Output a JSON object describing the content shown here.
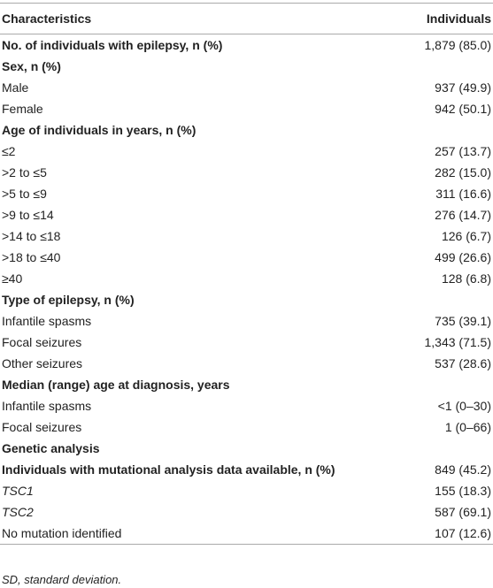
{
  "table": {
    "columns": [
      "Characteristics",
      "Individuals"
    ],
    "rows": [
      {
        "label": "No. of individuals with epilepsy, n (%)",
        "value": "1,879 (85.0)",
        "bold": true
      },
      {
        "label": "Sex, n (%)",
        "bold": true
      },
      {
        "label": "Male",
        "value": "937 (49.9)"
      },
      {
        "label": "Female",
        "value": "942 (50.1)"
      },
      {
        "label": "Age of individuals in years, n (%)",
        "bold": true
      },
      {
        "label": "≤2",
        "value": "257 (13.7)"
      },
      {
        "label": ">2 to ≤5",
        "value": "282 (15.0)"
      },
      {
        "label": ">5 to ≤9",
        "value": "311 (16.6)"
      },
      {
        "label": ">9 to ≤14",
        "value": "276 (14.7)"
      },
      {
        "label": ">14 to ≤18",
        "value": "126 (6.7)"
      },
      {
        "label": ">18 to ≤40",
        "value": "499 (26.6)"
      },
      {
        "label": "≥40",
        "value": "128 (6.8)"
      },
      {
        "label": "Type of epilepsy, n (%)",
        "bold": true
      },
      {
        "label": "Infantile spasms",
        "value": "735 (39.1)"
      },
      {
        "label": "Focal seizures",
        "value": "1,343 (71.5)"
      },
      {
        "label": "Other seizures",
        "value": "537 (28.6)"
      },
      {
        "label": "Median (range) age at diagnosis, years",
        "bold": true
      },
      {
        "label": "Infantile spasms",
        "value": "<1 (0–30)"
      },
      {
        "label": "Focal seizures",
        "value": "1 (0–66)"
      },
      {
        "label": "Genetic analysis",
        "bold": true
      },
      {
        "label": "Individuals with mutational analysis data available, n (%)",
        "value": "849 (45.2)",
        "bold": true
      },
      {
        "label": "TSC1",
        "value": "155 (18.3)",
        "italic": true
      },
      {
        "label": "TSC2",
        "value": "587 (69.1)",
        "italic": true
      },
      {
        "label": "No mutation identified",
        "value": "107 (12.6)"
      }
    ]
  },
  "footnote": "SD, standard deviation."
}
